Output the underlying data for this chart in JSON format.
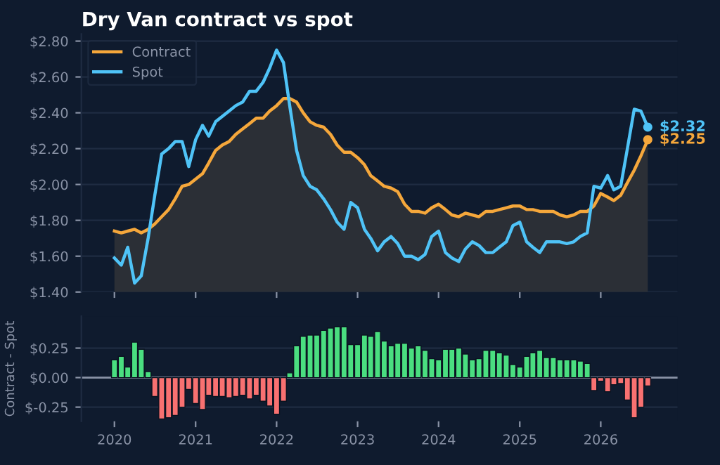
{
  "chart_data": [
    {
      "type": "line",
      "title": "Dry Van contract vs spot",
      "x": [
        "2020-01",
        "2020-02",
        "2020-03",
        "2020-04",
        "2020-05",
        "2020-06",
        "2020-07",
        "2020-08",
        "2020-09",
        "2020-10",
        "2020-11",
        "2020-12",
        "2021-01",
        "2021-02",
        "2021-03",
        "2021-04",
        "2021-05",
        "2021-06",
        "2021-07",
        "2021-08",
        "2021-09",
        "2021-10",
        "2021-11",
        "2021-12",
        "2022-01",
        "2022-02",
        "2022-03",
        "2022-04",
        "2022-05",
        "2022-06",
        "2022-07",
        "2022-08",
        "2022-09",
        "2022-10",
        "2022-11",
        "2022-12",
        "2023-01",
        "2023-02",
        "2023-03",
        "2023-04",
        "2023-05",
        "2023-06",
        "2023-07",
        "2023-08",
        "2023-09",
        "2023-10",
        "2023-11",
        "2023-12",
        "2024-01",
        "2024-02",
        "2024-03",
        "2024-04",
        "2024-05",
        "2024-06",
        "2024-07",
        "2024-08",
        "2024-09",
        "2024-10",
        "2024-11",
        "2024-12",
        "2025-01",
        "2025-02",
        "2025-03",
        "2025-04",
        "2025-05",
        "2025-06",
        "2025-07",
        "2025-08",
        "2025-09",
        "2025-10",
        "2025-11",
        "2025-12",
        "2026-01",
        "2026-02",
        "2026-03",
        "2026-04",
        "2026-05",
        "2026-06",
        "2026-07",
        "2026-08"
      ],
      "series": [
        {
          "name": "Contract",
          "type": "area",
          "color": "#f5a73b",
          "values": [
            1.74,
            1.73,
            1.74,
            1.75,
            1.73,
            1.75,
            1.78,
            1.82,
            1.86,
            1.92,
            1.99,
            2.0,
            2.03,
            2.06,
            2.12,
            2.19,
            2.22,
            2.24,
            2.28,
            2.31,
            2.34,
            2.37,
            2.37,
            2.41,
            2.44,
            2.48,
            2.48,
            2.46,
            2.4,
            2.35,
            2.33,
            2.32,
            2.28,
            2.22,
            2.18,
            2.18,
            2.15,
            2.11,
            2.05,
            2.02,
            1.99,
            1.98,
            1.96,
            1.89,
            1.85,
            1.85,
            1.84,
            1.87,
            1.89,
            1.86,
            1.83,
            1.82,
            1.84,
            1.83,
            1.82,
            1.85,
            1.85,
            1.86,
            1.87,
            1.88,
            1.88,
            1.86,
            1.86,
            1.85,
            1.85,
            1.85,
            1.83,
            1.82,
            1.83,
            1.85,
            1.85,
            1.88,
            1.95,
            1.93,
            1.91,
            1.94,
            2.01,
            2.08,
            2.16,
            2.25
          ]
        },
        {
          "name": "Spot",
          "type": "line",
          "color": "#4fc3f7",
          "values": [
            1.59,
            1.55,
            1.65,
            1.45,
            1.49,
            1.7,
            1.94,
            2.17,
            2.2,
            2.24,
            2.24,
            2.1,
            2.25,
            2.33,
            2.27,
            2.35,
            2.38,
            2.41,
            2.44,
            2.46,
            2.52,
            2.52,
            2.57,
            2.65,
            2.75,
            2.68,
            2.44,
            2.19,
            2.05,
            1.99,
            1.97,
            1.92,
            1.86,
            1.79,
            1.75,
            1.9,
            1.87,
            1.75,
            1.7,
            1.63,
            1.68,
            1.71,
            1.67,
            1.6,
            1.6,
            1.58,
            1.61,
            1.71,
            1.74,
            1.62,
            1.59,
            1.57,
            1.64,
            1.68,
            1.66,
            1.62,
            1.62,
            1.65,
            1.68,
            1.77,
            1.79,
            1.68,
            1.65,
            1.62,
            1.68,
            1.68,
            1.68,
            1.67,
            1.68,
            1.71,
            1.73,
            1.99,
            1.98,
            2.05,
            1.97,
            1.99,
            2.2,
            2.42,
            2.41,
            2.32
          ]
        },
        {
          "type": "scatter",
          "color": "#f5a73b",
          "x": [
            "2026-08"
          ],
          "values": [
            2.25
          ]
        },
        {
          "type": "scatter",
          "color": "#4fc3f7",
          "x": [
            "2026-08"
          ],
          "values": [
            2.32
          ]
        }
      ],
      "annotations": [
        {
          "text": "$2.25",
          "x": "2026-08",
          "y": 2.25
        },
        {
          "text": "$2.32",
          "x": "2026-08",
          "y": 2.32
        }
      ],
      "xlim": [
        "2019-08-05",
        "2026-12-13"
      ],
      "ylim": [
        1.4,
        2.84
      ],
      "yticks": [
        {
          "value": 1.4,
          "label": "$1.40"
        },
        {
          "value": 1.6,
          "label": "$1.60"
        },
        {
          "value": 1.8,
          "label": "$1.80"
        },
        {
          "value": 2.0,
          "label": "$2.00"
        },
        {
          "value": 2.2,
          "label": "$2.20"
        },
        {
          "value": 2.4,
          "label": "$2.40"
        },
        {
          "value": 2.6,
          "label": "$2.60"
        },
        {
          "value": 2.8,
          "label": "$2.80"
        }
      ],
      "xticks": [
        {
          "value": "2020",
          "label": null
        },
        {
          "value": "2021",
          "label": null
        },
        {
          "value": "2022",
          "label": null
        },
        {
          "value": "2023",
          "label": null
        },
        {
          "value": "2024",
          "label": null
        },
        {
          "value": "2025",
          "label": null
        },
        {
          "value": "2026",
          "label": null
        }
      ],
      "tick_labels": "y",
      "grid": "y",
      "legend": "top left"
    },
    {
      "type": "bar",
      "ylabel": "Contract - Spot",
      "x": [
        "2020-01",
        "2020-02",
        "2020-03",
        "2020-04",
        "2020-05",
        "2020-06",
        "2020-07",
        "2020-08",
        "2020-09",
        "2020-10",
        "2020-11",
        "2020-12",
        "2021-01",
        "2021-02",
        "2021-03",
        "2021-04",
        "2021-05",
        "2021-06",
        "2021-07",
        "2021-08",
        "2021-09",
        "2021-10",
        "2021-11",
        "2021-12",
        "2022-01",
        "2022-02",
        "2022-03",
        "2022-04",
        "2022-05",
        "2022-06",
        "2022-07",
        "2022-08",
        "2022-09",
        "2022-10",
        "2022-11",
        "2022-12",
        "2023-01",
        "2023-02",
        "2023-03",
        "2023-04",
        "2023-05",
        "2023-06",
        "2023-07",
        "2023-08",
        "2023-09",
        "2023-10",
        "2023-11",
        "2023-12",
        "2024-01",
        "2024-02",
        "2024-03",
        "2024-04",
        "2024-05",
        "2024-06",
        "2024-07",
        "2024-08",
        "2024-09",
        "2024-10",
        "2024-11",
        "2024-12",
        "2025-01",
        "2025-02",
        "2025-03",
        "2025-04",
        "2025-05",
        "2025-06",
        "2025-07",
        "2025-08",
        "2025-09",
        "2025-10",
        "2025-11",
        "2025-12",
        "2026-01",
        "2026-02",
        "2026-03",
        "2026-04",
        "2026-05",
        "2026-06",
        "2026-07",
        "2026-08"
      ],
      "values": [
        0.15,
        0.18,
        0.09,
        0.3,
        0.24,
        0.05,
        -0.16,
        -0.35,
        -0.34,
        -0.32,
        -0.25,
        -0.1,
        -0.22,
        -0.27,
        -0.15,
        -0.16,
        -0.16,
        -0.17,
        -0.16,
        -0.15,
        -0.18,
        -0.15,
        -0.2,
        -0.24,
        -0.31,
        -0.2,
        0.04,
        0.27,
        0.35,
        0.36,
        0.36,
        0.4,
        0.42,
        0.43,
        0.43,
        0.28,
        0.28,
        0.36,
        0.35,
        0.39,
        0.31,
        0.27,
        0.29,
        0.29,
        0.25,
        0.27,
        0.23,
        0.16,
        0.15,
        0.24,
        0.24,
        0.25,
        0.2,
        0.15,
        0.16,
        0.23,
        0.23,
        0.21,
        0.19,
        0.11,
        0.09,
        0.18,
        0.21,
        0.23,
        0.17,
        0.17,
        0.15,
        0.15,
        0.15,
        0.14,
        0.12,
        -0.11,
        -0.03,
        -0.12,
        -0.06,
        -0.05,
        -0.19,
        -0.34,
        -0.25,
        -0.07
      ],
      "xlim": [
        "2019-08-05",
        "2026-12-13"
      ],
      "ylim": [
        -0.37,
        0.52
      ],
      "yticks": [
        {
          "value": -0.25,
          "label": "$-0.25"
        },
        {
          "value": 0.0,
          "label": "$0.00"
        },
        {
          "value": 0.25,
          "label": "$0.25"
        }
      ],
      "xticks": [
        {
          "value": "2020",
          "label": "2020"
        },
        {
          "value": "2021",
          "label": "2021"
        },
        {
          "value": "2022",
          "label": "2022"
        },
        {
          "value": "2023",
          "label": "2023"
        },
        {
          "value": "2024",
          "label": "2024"
        },
        {
          "value": "2025",
          "label": "2025"
        },
        {
          "value": "2026",
          "label": "2026"
        }
      ],
      "ref_lines": [
        {
          "axis": "y",
          "value": 0,
          "label": null,
          "color": "#8a93a6"
        }
      ],
      "grid": "y"
    }
  ]
}
